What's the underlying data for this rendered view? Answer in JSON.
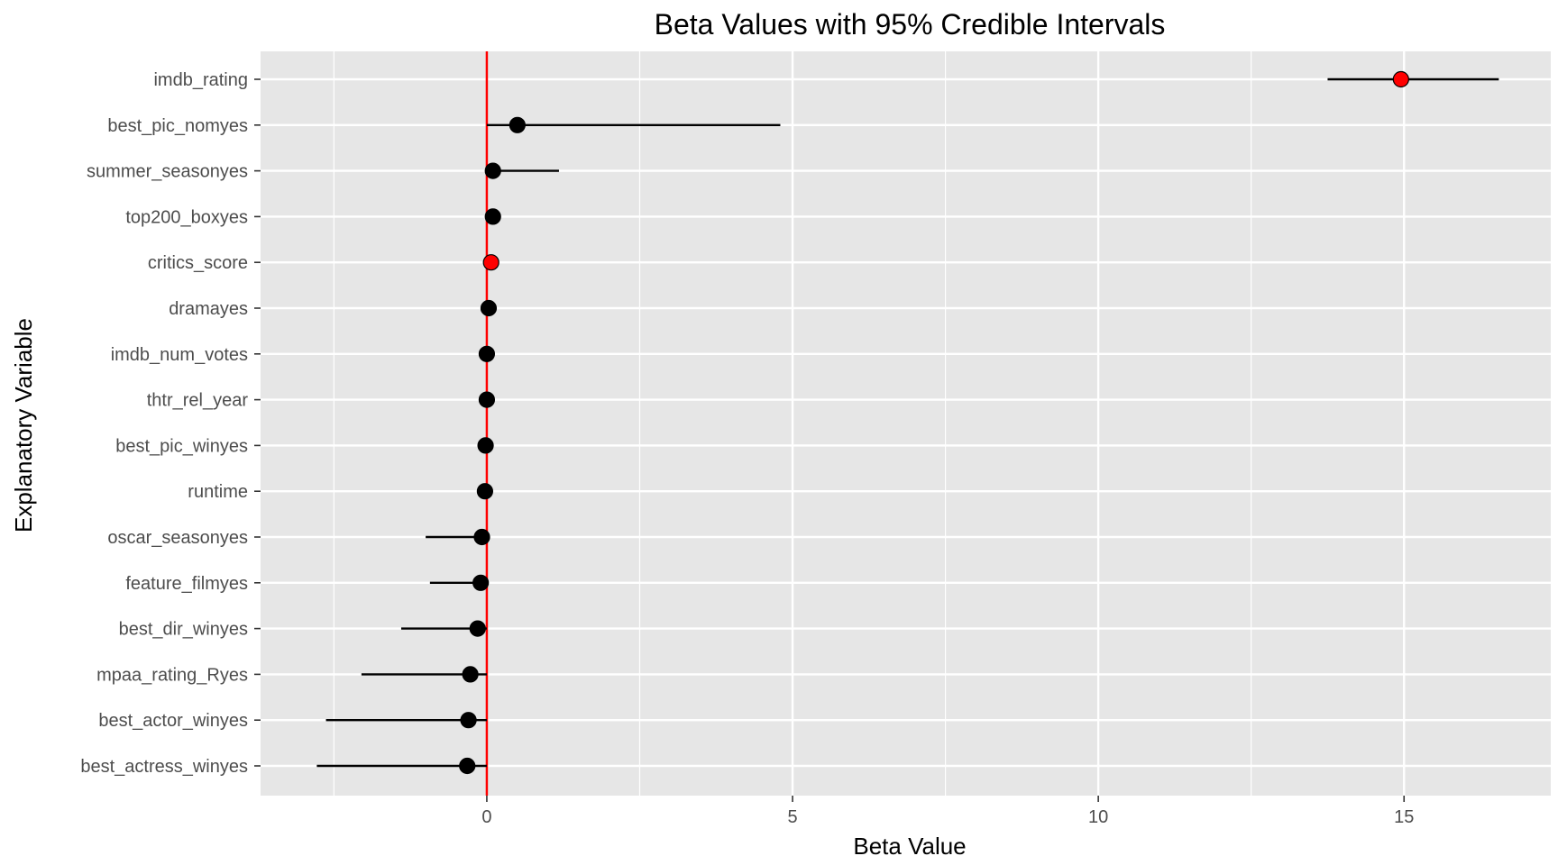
{
  "chart_data": {
    "type": "scatter",
    "title": "Beta Values with 95% Credible Intervals",
    "xlabel": "Beta Value",
    "ylabel": "Explanatory Variable",
    "xlim": [
      -3.7,
      17.4
    ],
    "x_ticks": [
      0,
      5,
      10,
      15
    ],
    "x_minor_ticks": [
      -2.5,
      2.5,
      7.5,
      12.5
    ],
    "reference_line": {
      "x": 0,
      "color": "#ff0000"
    },
    "grid": true,
    "legend": "none",
    "colors": {
      "panel": "#e6e6e6",
      "grid": "#ffffff",
      "point": "#000000",
      "highlight": "#ff0000",
      "interval": "#000000"
    },
    "points": [
      {
        "label": "imdb_rating",
        "estimate": 14.95,
        "lower": 13.75,
        "upper": 16.55,
        "highlight": true
      },
      {
        "label": "best_pic_nomyes",
        "estimate": 0.5,
        "lower": 0.0,
        "upper": 4.8,
        "highlight": false
      },
      {
        "label": "summer_seasonyes",
        "estimate": 0.1,
        "lower": 0.0,
        "upper": 1.18,
        "highlight": false
      },
      {
        "label": "top200_boxyes",
        "estimate": 0.1,
        "lower": 0.0,
        "upper": 0.1,
        "highlight": false
      },
      {
        "label": "critics_score",
        "estimate": 0.07,
        "lower": 0.06,
        "upper": 0.08,
        "highlight": true
      },
      {
        "label": "dramayes",
        "estimate": 0.03,
        "lower": 0.0,
        "upper": 0.05,
        "highlight": false
      },
      {
        "label": "imdb_num_votes",
        "estimate": 0.0,
        "lower": 0.0,
        "upper": 0.0,
        "highlight": false
      },
      {
        "label": "thtr_rel_year",
        "estimate": 0.0,
        "lower": 0.0,
        "upper": 0.0,
        "highlight": false
      },
      {
        "label": "best_pic_winyes",
        "estimate": -0.02,
        "lower": -0.05,
        "upper": 0.0,
        "highlight": false
      },
      {
        "label": "runtime",
        "estimate": -0.03,
        "lower": -0.04,
        "upper": 0.0,
        "highlight": false
      },
      {
        "label": "oscar_seasonyes",
        "estimate": -0.08,
        "lower": -1.0,
        "upper": 0.0,
        "highlight": false
      },
      {
        "label": "feature_filmyes",
        "estimate": -0.1,
        "lower": -0.93,
        "upper": 0.0,
        "highlight": false
      },
      {
        "label": "best_dir_winyes",
        "estimate": -0.15,
        "lower": -1.4,
        "upper": 0.0,
        "highlight": false
      },
      {
        "label": "mpaa_rating_Ryes",
        "estimate": -0.27,
        "lower": -2.05,
        "upper": 0.0,
        "highlight": false
      },
      {
        "label": "best_actor_winyes",
        "estimate": -0.3,
        "lower": -2.63,
        "upper": 0.0,
        "highlight": false
      },
      {
        "label": "best_actress_winyes",
        "estimate": -0.32,
        "lower": -2.78,
        "upper": 0.0,
        "highlight": false
      }
    ]
  }
}
